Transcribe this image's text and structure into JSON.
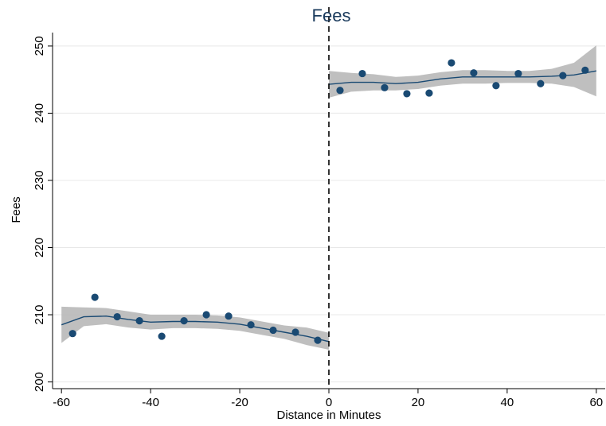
{
  "chart_data": {
    "type": "scatter",
    "title": "Fees",
    "xlabel": "Distance in Minutes",
    "ylabel": "Fees",
    "xlim": [
      -62,
      62
    ],
    "ylim": [
      199,
      252
    ],
    "x_ticks": [
      -60,
      -40,
      -20,
      0,
      20,
      40,
      60
    ],
    "y_ticks": [
      200,
      210,
      220,
      230,
      240,
      250
    ],
    "grid": "horizontal",
    "cutoff_x": 0,
    "colors": {
      "points": "#1a4a73",
      "fit_line": "#1a4a73",
      "ci_band": "#b4b4b4",
      "grid": "#e8e8e8"
    },
    "series": [
      {
        "segment": "left",
        "points": {
          "x": [
            -57.5,
            -52.5,
            -47.5,
            -42.5,
            -37.5,
            -32.5,
            -27.5,
            -22.5,
            -17.5,
            -12.5,
            -7.5,
            -2.5
          ],
          "y": [
            207.2,
            212.6,
            209.7,
            209.1,
            206.8,
            209.1,
            210.0,
            209.8,
            208.5,
            207.7,
            207.4,
            206.2
          ]
        },
        "fit": {
          "x": [
            -60,
            -55,
            -50,
            -45,
            -40,
            -35,
            -30,
            -25,
            -20,
            -15,
            -10,
            -5,
            0
          ],
          "y": [
            208.5,
            209.7,
            209.8,
            209.3,
            208.9,
            209.0,
            209.0,
            208.9,
            208.6,
            208.0,
            207.4,
            206.8,
            206.0
          ],
          "ci_lower": [
            205.8,
            208.3,
            208.6,
            208.1,
            207.8,
            208.0,
            208.0,
            207.9,
            207.6,
            207.0,
            206.4,
            205.5,
            204.8
          ],
          "ci_upper": [
            211.2,
            211.1,
            211.0,
            210.5,
            210.0,
            210.0,
            210.0,
            209.9,
            209.6,
            209.0,
            208.4,
            208.1,
            207.3
          ]
        }
      },
      {
        "segment": "right",
        "points": {
          "x": [
            2.5,
            7.5,
            12.5,
            17.5,
            22.5,
            27.5,
            32.5,
            37.5,
            42.5,
            47.5,
            52.5,
            57.5
          ],
          "y": [
            243.4,
            245.9,
            243.8,
            242.9,
            243.0,
            247.5,
            246.0,
            244.1,
            245.9,
            244.4,
            245.6,
            246.4
          ]
        },
        "fit": {
          "x": [
            0,
            5,
            10,
            15,
            20,
            25,
            30,
            35,
            40,
            45,
            50,
            55,
            60
          ],
          "y": [
            244.3,
            244.6,
            244.6,
            244.4,
            244.6,
            245.1,
            245.4,
            245.4,
            245.4,
            245.4,
            245.5,
            245.7,
            246.3
          ],
          "ci_lower": [
            242.3,
            243.2,
            243.4,
            243.4,
            243.6,
            244.1,
            244.4,
            244.4,
            244.5,
            244.5,
            244.4,
            243.9,
            242.5
          ],
          "ci_upper": [
            246.3,
            246.0,
            245.8,
            245.4,
            245.6,
            246.1,
            246.4,
            246.4,
            246.3,
            246.3,
            246.6,
            247.5,
            250.1
          ]
        }
      }
    ]
  }
}
